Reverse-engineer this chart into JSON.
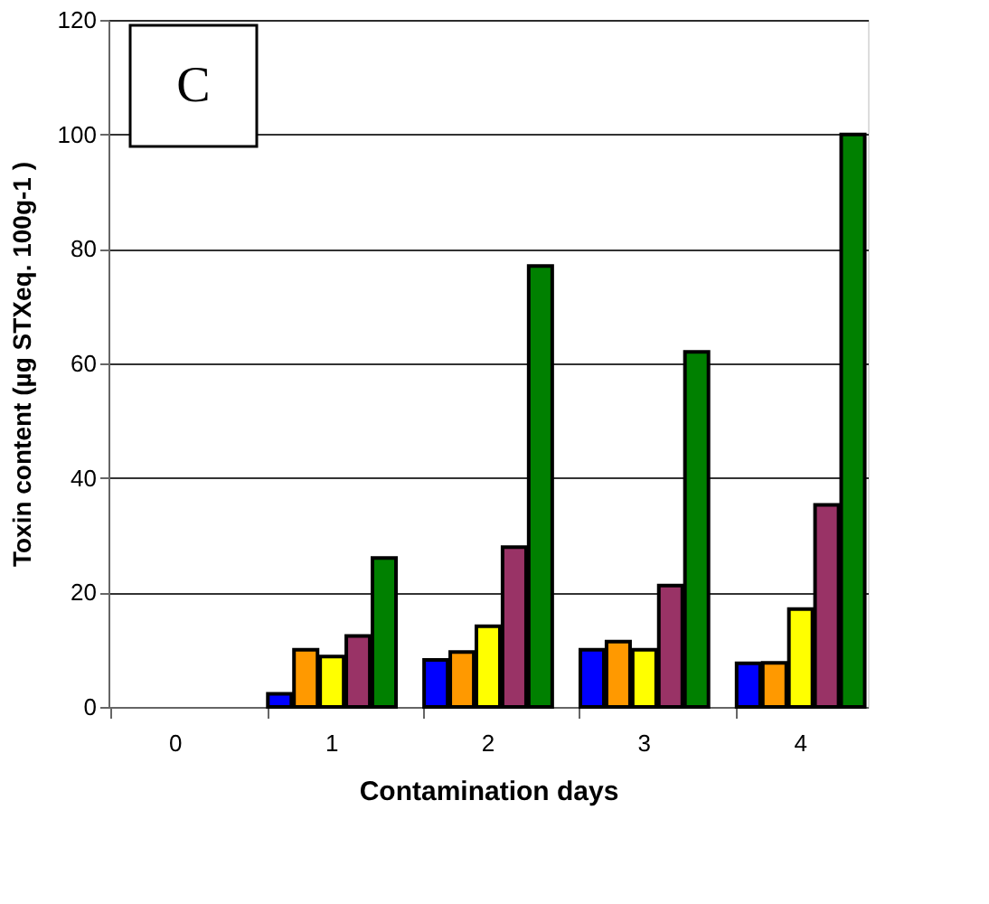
{
  "chart_data": {
    "type": "bar",
    "xlabel": "Contamination days",
    "ylabel": "Toxin content  (µg  STXeq.  100g-1 )",
    "categories": [
      "0",
      "1",
      "2",
      "3",
      "4"
    ],
    "series": [
      {
        "color": "#0000ff",
        "values": [
          null,
          2.3,
          8.2,
          10.0,
          7.6
        ]
      },
      {
        "color": "#ff9900",
        "values": [
          null,
          10.0,
          9.6,
          11.4,
          7.7
        ]
      },
      {
        "color": "#ffff00",
        "values": [
          null,
          8.8,
          14.1,
          10.0,
          17.1
        ]
      },
      {
        "color": "#993366",
        "values": [
          null,
          12.4,
          27.9,
          21.2,
          35.3
        ]
      },
      {
        "color": "#008000",
        "values": [
          null,
          26,
          77,
          62,
          100
        ]
      }
    ],
    "ylim": [
      0,
      120
    ],
    "yticks": [
      0,
      20,
      40,
      60,
      80,
      100,
      120
    ],
    "grid": "y",
    "annotations": [
      "C"
    ]
  }
}
